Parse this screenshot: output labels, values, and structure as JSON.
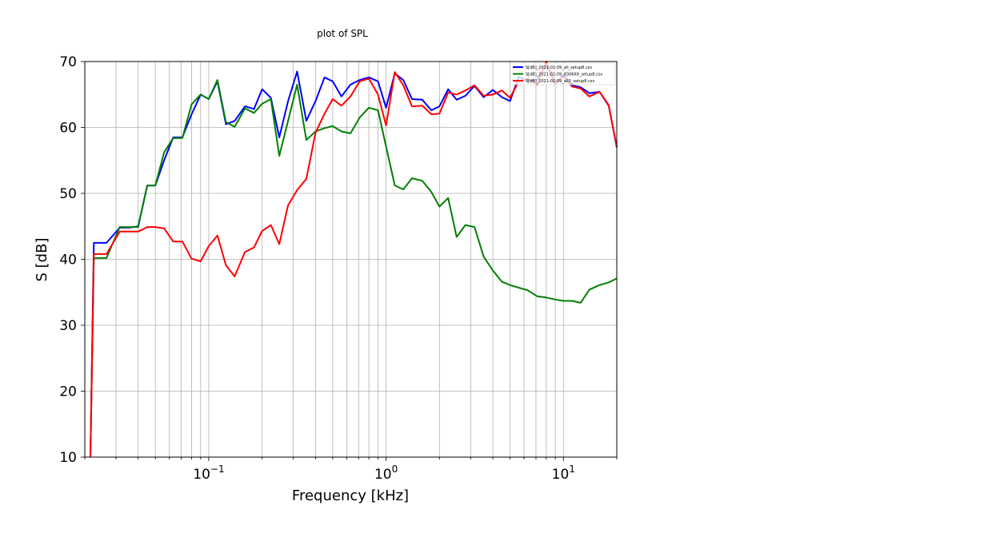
{
  "chart_data": {
    "type": "line",
    "title": "plot of SPL",
    "xlabel": "Frequency [kHz]",
    "ylabel": "S [dB]",
    "xscale": "log",
    "xlim": [
      0.02,
      20
    ],
    "ylim": [
      10,
      70
    ],
    "grid": true,
    "legend_placement": "top-right",
    "x_tick_labels": [
      {
        "value": 0.1,
        "base": "10",
        "exp": "−1"
      },
      {
        "value": 1,
        "base": "10",
        "exp": "0"
      },
      {
        "value": 10,
        "base": "10",
        "exp": "1"
      }
    ],
    "y_ticks": [
      10,
      20,
      30,
      40,
      50,
      60,
      70
    ],
    "series": [
      {
        "name": "S[dB]_2021-02-09_all_setup8.csv",
        "color": "#0000ff",
        "x": [
          0.0215,
          0.0225,
          0.0265,
          0.0315,
          0.0355,
          0.04,
          0.045,
          0.05,
          0.056,
          0.063,
          0.071,
          0.08,
          0.09,
          0.1,
          0.112,
          0.125,
          0.14,
          0.16,
          0.18,
          0.2,
          0.224,
          0.25,
          0.28,
          0.315,
          0.355,
          0.4,
          0.45,
          0.5,
          0.56,
          0.63,
          0.71,
          0.8,
          0.9,
          1.0,
          1.12,
          1.25,
          1.4,
          1.6,
          1.8,
          2.0,
          2.24,
          2.5,
          2.8,
          3.15,
          3.55,
          4.0,
          4.5,
          5.0,
          5.6,
          6.3,
          7.1,
          8.0,
          9.0,
          10.0,
          11.2,
          12.5,
          14.0,
          16.0,
          18.0,
          20.0
        ],
        "y": [
          10,
          42.5,
          42.5,
          44.8,
          44.8,
          45.0,
          51.2,
          51.2,
          55.0,
          58.5,
          58.5,
          62.0,
          65.0,
          64.3,
          67.0,
          60.5,
          61.0,
          63.2,
          62.8,
          65.8,
          64.5,
          58.5,
          64.0,
          68.5,
          61.0,
          64.0,
          67.6,
          67.0,
          64.7,
          66.5,
          67.2,
          67.6,
          67.0,
          63.0,
          68.2,
          67.2,
          64.3,
          64.2,
          62.6,
          63.2,
          65.8,
          64.2,
          64.8,
          66.3,
          64.6,
          65.7,
          64.6,
          64.0,
          67.7,
          67.1,
          67.2,
          69.5,
          66.6,
          68.0,
          66.4,
          66.1,
          65.2,
          65.4,
          63.3,
          57.0
        ]
      },
      {
        "name": "S[dB]_2021-02-09_830669_setup8.csv",
        "color": "#008000",
        "x": [
          0.0215,
          0.0225,
          0.0265,
          0.0315,
          0.0355,
          0.04,
          0.045,
          0.05,
          0.056,
          0.063,
          0.071,
          0.08,
          0.09,
          0.1,
          0.112,
          0.125,
          0.14,
          0.16,
          0.18,
          0.2,
          0.224,
          0.25,
          0.28,
          0.315,
          0.355,
          0.4,
          0.45,
          0.5,
          0.56,
          0.63,
          0.71,
          0.8,
          0.9,
          1.0,
          1.12,
          1.25,
          1.4,
          1.6,
          1.8,
          2.0,
          2.24,
          2.5,
          2.8,
          3.15,
          3.55,
          4.0,
          4.5,
          5.0,
          5.6,
          6.3,
          7.1,
          8.0,
          9.0,
          10.0,
          11.2,
          12.5,
          14.0,
          16.0,
          18.0,
          20.0
        ],
        "y": [
          10,
          40.2,
          40.2,
          44.9,
          44.9,
          44.9,
          51.2,
          51.2,
          56.2,
          58.4,
          58.4,
          63.5,
          65.0,
          64.3,
          67.2,
          60.8,
          60.1,
          62.9,
          62.2,
          63.6,
          64.3,
          55.7,
          61.0,
          66.5,
          58.1,
          59.4,
          59.9,
          60.2,
          59.4,
          59.1,
          61.5,
          63.0,
          62.6,
          57.1,
          51.2,
          50.6,
          52.3,
          51.9,
          50.2,
          48.0,
          49.3,
          43.4,
          45.2,
          44.9,
          40.4,
          38.3,
          36.6,
          36.1,
          35.7,
          35.3,
          34.4,
          34.2,
          33.9,
          33.7,
          33.7,
          33.4,
          35.4,
          36.1,
          36.5,
          37.1
        ]
      },
      {
        "name": "S[dB]_2021-02-09_all3_setup8.csv",
        "color": "#ff0000",
        "x": [
          0.0215,
          0.0225,
          0.0265,
          0.0315,
          0.0355,
          0.04,
          0.045,
          0.05,
          0.056,
          0.063,
          0.071,
          0.08,
          0.09,
          0.1,
          0.112,
          0.125,
          0.14,
          0.16,
          0.18,
          0.2,
          0.224,
          0.25,
          0.28,
          0.315,
          0.355,
          0.4,
          0.45,
          0.5,
          0.56,
          0.63,
          0.71,
          0.8,
          0.9,
          1.0,
          1.12,
          1.25,
          1.4,
          1.6,
          1.8,
          2.0,
          2.24,
          2.5,
          2.8,
          3.15,
          3.55,
          4.0,
          4.5,
          5.0,
          5.6,
          6.3,
          7.1,
          8.0,
          9.0,
          10.0,
          11.2,
          12.5,
          14.0,
          16.0,
          18.0,
          20.0
        ],
        "y": [
          10,
          40.8,
          40.8,
          44.2,
          44.2,
          44.2,
          44.9,
          44.9,
          44.7,
          42.7,
          42.7,
          40.1,
          39.7,
          42.0,
          43.6,
          39.1,
          37.4,
          41.1,
          41.8,
          44.3,
          45.2,
          42.3,
          48.2,
          50.5,
          52.2,
          59.2,
          62.1,
          64.3,
          63.3,
          64.7,
          67.0,
          67.4,
          65.0,
          60.3,
          68.4,
          66.4,
          63.2,
          63.3,
          62.0,
          62.1,
          65.3,
          65.0,
          65.6,
          66.4,
          64.8,
          65.0,
          65.6,
          64.5,
          67.0,
          67.4,
          66.5,
          70.0,
          66.8,
          67.7,
          66.2,
          65.9,
          64.7,
          65.4,
          63.4,
          57.0
        ]
      }
    ]
  }
}
